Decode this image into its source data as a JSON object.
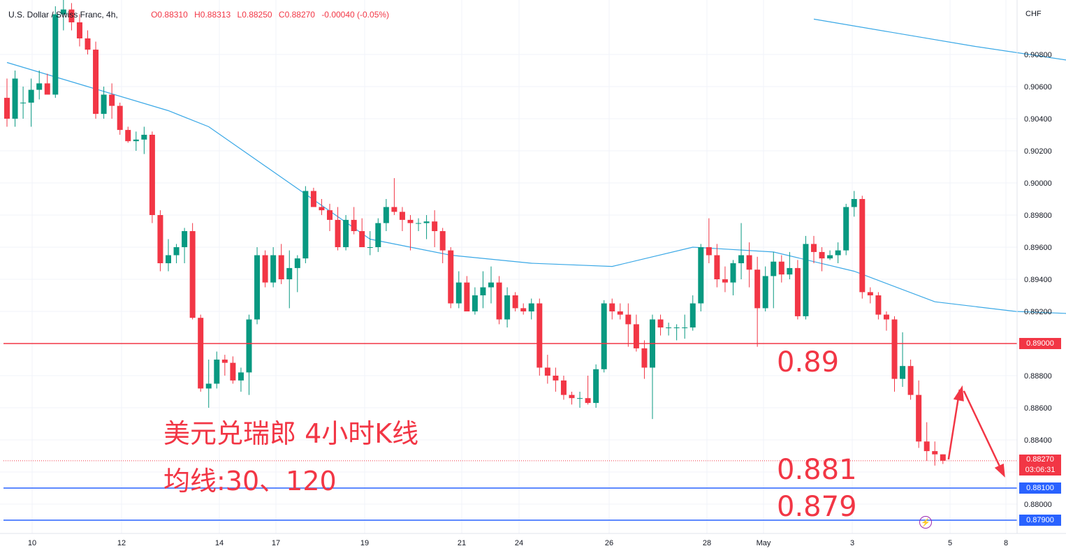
{
  "legend": {
    "symbol": "U.S. Dollar / Swiss Franc, 4h,",
    "open": "O0.88310",
    "high": "H0.88313",
    "low": "L0.88250",
    "close": "C0.88270",
    "change": "-0.00040 (-0.05%)"
  },
  "currency": "CHF",
  "annotations": {
    "title": "美元兑瑞郎 4小时K线",
    "ma_note": "均线:30、120",
    "level_089": "0.89",
    "level_0881": "0.881",
    "level_0879": "0.879"
  },
  "price_tags": {
    "h_0890": "0.89000",
    "last_price": "0.88270",
    "countdown": "03:06:31",
    "h_0881": "0.88100",
    "h_0879": "0.87900"
  },
  "alert_icon": "lightning-icon",
  "colors": {
    "up": "#089981",
    "down": "#f23645",
    "ma": "#3aa8e6",
    "hline_red": "#f23645",
    "hline_blue": "#2962ff",
    "grid": "#f0f3fa",
    "axis_text": "#131722"
  },
  "chart_data": {
    "type": "candlestick",
    "timeframe": "4h",
    "y_ticks": [
      "0.87900",
      "0.88000",
      "0.88200",
      "0.88400",
      "0.88600",
      "0.88800",
      "0.89000",
      "0.89200",
      "0.89400",
      "0.89600",
      "0.89800",
      "0.90000",
      "0.90200",
      "0.90400",
      "0.90600",
      "0.90800"
    ],
    "ylim": [
      0.8785,
      0.9105
    ],
    "x_ticks": [
      "10",
      "12",
      "14",
      "17",
      "19",
      "21",
      "24",
      "26",
      "28",
      "May",
      "3",
      "5",
      "8"
    ],
    "grid": true,
    "horizontal_lines": [
      0.89,
      0.881,
      0.879
    ],
    "last_price": 0.8827,
    "candles": [
      [
        0.9053,
        0.9065,
        0.9035,
        0.904
      ],
      [
        0.904,
        0.907,
        0.9035,
        0.9065
      ],
      [
        0.905,
        0.906,
        0.904,
        0.905
      ],
      [
        0.905,
        0.9065,
        0.9035,
        0.9058
      ],
      [
        0.9058,
        0.907,
        0.9052,
        0.9062
      ],
      [
        0.9062,
        0.9068,
        0.9055,
        0.9055
      ],
      [
        0.9055,
        0.911,
        0.9053,
        0.9105
      ],
      [
        0.9105,
        0.9115,
        0.9095,
        0.9108
      ],
      [
        0.9108,
        0.9112,
        0.9095,
        0.91
      ],
      [
        0.91,
        0.9105,
        0.9085,
        0.909
      ],
      [
        0.909,
        0.9095,
        0.908,
        0.9083
      ],
      [
        0.9083,
        0.9088,
        0.904,
        0.9043
      ],
      [
        0.9043,
        0.906,
        0.904,
        0.9055
      ],
      [
        0.9055,
        0.9062,
        0.904,
        0.9048
      ],
      [
        0.9048,
        0.905,
        0.903,
        0.9033
      ],
      [
        0.9033,
        0.9035,
        0.9025,
        0.9026
      ],
      [
        0.9026,
        0.9032,
        0.902,
        0.9027
      ],
      [
        0.9027,
        0.9035,
        0.9018,
        0.903
      ],
      [
        0.903,
        0.9032,
        0.8975,
        0.898
      ],
      [
        0.898,
        0.8983,
        0.8945,
        0.895
      ],
      [
        0.895,
        0.8965,
        0.8945,
        0.8955
      ],
      [
        0.8955,
        0.8962,
        0.895,
        0.896
      ],
      [
        0.896,
        0.8972,
        0.895,
        0.897
      ],
      [
        0.897,
        0.8975,
        0.8915,
        0.8916
      ],
      [
        0.8916,
        0.8918,
        0.887,
        0.8872
      ],
      [
        0.8872,
        0.889,
        0.886,
        0.8875
      ],
      [
        0.8875,
        0.8895,
        0.8872,
        0.889
      ],
      [
        0.889,
        0.8893,
        0.888,
        0.8888
      ],
      [
        0.8888,
        0.8892,
        0.8875,
        0.8877
      ],
      [
        0.8877,
        0.8885,
        0.887,
        0.8882
      ],
      [
        0.8882,
        0.8918,
        0.8868,
        0.8915
      ],
      [
        0.8915,
        0.896,
        0.8912,
        0.8955
      ],
      [
        0.8955,
        0.8958,
        0.8935,
        0.8938
      ],
      [
        0.8938,
        0.896,
        0.8935,
        0.8955
      ],
      [
        0.8955,
        0.8962,
        0.8937,
        0.894
      ],
      [
        0.894,
        0.8958,
        0.8922,
        0.8947
      ],
      [
        0.8947,
        0.8955,
        0.8932,
        0.8953
      ],
      [
        0.8953,
        0.8998,
        0.895,
        0.8995
      ],
      [
        0.8995,
        0.8997,
        0.8985,
        0.8985
      ],
      [
        0.8985,
        0.899,
        0.898,
        0.8983
      ],
      [
        0.8983,
        0.8987,
        0.897,
        0.8977
      ],
      [
        0.8977,
        0.8985,
        0.8958,
        0.896
      ],
      [
        0.896,
        0.898,
        0.8958,
        0.8977
      ],
      [
        0.8977,
        0.8985,
        0.8968,
        0.897
      ],
      [
        0.897,
        0.8978,
        0.896,
        0.896
      ],
      [
        0.896,
        0.897,
        0.8955,
        0.896
      ],
      [
        0.896,
        0.8978,
        0.8957,
        0.8975
      ],
      [
        0.8975,
        0.899,
        0.897,
        0.8985
      ],
      [
        0.8985,
        0.9003,
        0.898,
        0.8982
      ],
      [
        0.8982,
        0.8985,
        0.897,
        0.8977
      ],
      [
        0.8977,
        0.898,
        0.8958,
        0.8975
      ],
      [
        0.8975,
        0.8978,
        0.897,
        0.8975
      ],
      [
        0.8975,
        0.898,
        0.8965,
        0.8976
      ],
      [
        0.8976,
        0.8983,
        0.896,
        0.897
      ],
      [
        0.897,
        0.8972,
        0.895,
        0.8958
      ],
      [
        0.8958,
        0.896,
        0.8922,
        0.8925
      ],
      [
        0.8925,
        0.8945,
        0.8922,
        0.8938
      ],
      [
        0.8938,
        0.8942,
        0.892,
        0.892
      ],
      [
        0.892,
        0.8935,
        0.8918,
        0.893
      ],
      [
        0.893,
        0.8945,
        0.8922,
        0.8935
      ],
      [
        0.8935,
        0.8948,
        0.8925,
        0.8938
      ],
      [
        0.8938,
        0.8942,
        0.8912,
        0.8915
      ],
      [
        0.8915,
        0.8935,
        0.891,
        0.893
      ],
      [
        0.893,
        0.8932,
        0.892,
        0.8922
      ],
      [
        0.8922,
        0.8925,
        0.8918,
        0.892
      ],
      [
        0.892,
        0.8928,
        0.8915,
        0.8925
      ],
      [
        0.8925,
        0.8928,
        0.888,
        0.8885
      ],
      [
        0.8885,
        0.8893,
        0.8875,
        0.888
      ],
      [
        0.888,
        0.8885,
        0.887,
        0.8877
      ],
      [
        0.8877,
        0.888,
        0.8865,
        0.8868
      ],
      [
        0.8868,
        0.887,
        0.8862,
        0.8866
      ],
      [
        0.8866,
        0.887,
        0.886,
        0.8866
      ],
      [
        0.8866,
        0.888,
        0.8862,
        0.8863
      ],
      [
        0.8863,
        0.8887,
        0.886,
        0.8884
      ],
      [
        0.8884,
        0.8927,
        0.8882,
        0.8925
      ],
      [
        0.8925,
        0.8928,
        0.8915,
        0.892
      ],
      [
        0.892,
        0.8925,
        0.8915,
        0.8918
      ],
      [
        0.8918,
        0.8925,
        0.8898,
        0.8912
      ],
      [
        0.8912,
        0.8918,
        0.8895,
        0.8897
      ],
      [
        0.8897,
        0.8902,
        0.8878,
        0.8885
      ],
      [
        0.8885,
        0.8918,
        0.8853,
        0.8915
      ],
      [
        0.8915,
        0.8918,
        0.8905,
        0.891
      ],
      [
        0.891,
        0.8913,
        0.8905,
        0.891
      ],
      [
        0.891,
        0.8912,
        0.8902,
        0.891
      ],
      [
        0.891,
        0.8918,
        0.8903,
        0.891
      ],
      [
        0.891,
        0.893,
        0.8908,
        0.8925
      ],
      [
        0.8925,
        0.8962,
        0.892,
        0.896
      ],
      [
        0.896,
        0.8978,
        0.895,
        0.8955
      ],
      [
        0.8955,
        0.8962,
        0.8935,
        0.894
      ],
      [
        0.894,
        0.8948,
        0.8932,
        0.8938
      ],
      [
        0.8938,
        0.8952,
        0.893,
        0.895
      ],
      [
        0.895,
        0.8975,
        0.894,
        0.8955
      ],
      [
        0.8955,
        0.8963,
        0.8935,
        0.8946
      ],
      [
        0.8946,
        0.8954,
        0.8898,
        0.8922
      ],
      [
        0.8922,
        0.8948,
        0.892,
        0.8942
      ],
      [
        0.8942,
        0.8957,
        0.8922,
        0.8951
      ],
      [
        0.8951,
        0.8955,
        0.8938,
        0.8943
      ],
      [
        0.8943,
        0.8957,
        0.894,
        0.8947
      ],
      [
        0.8947,
        0.8952,
        0.8915,
        0.8917
      ],
      [
        0.8917,
        0.8967,
        0.8915,
        0.8962
      ],
      [
        0.8962,
        0.8967,
        0.895,
        0.8957
      ],
      [
        0.8957,
        0.896,
        0.8945,
        0.8953
      ],
      [
        0.8953,
        0.8958,
        0.8952,
        0.8955
      ],
      [
        0.8955,
        0.8963,
        0.895,
        0.8958
      ],
      [
        0.8958,
        0.8987,
        0.8955,
        0.8985
      ],
      [
        0.8985,
        0.8995,
        0.8979,
        0.899
      ],
      [
        0.899,
        0.8992,
        0.8928,
        0.8932
      ],
      [
        0.8932,
        0.8935,
        0.8925,
        0.893
      ],
      [
        0.893,
        0.8932,
        0.8915,
        0.8918
      ],
      [
        0.8918,
        0.892,
        0.8908,
        0.8915
      ],
      [
        0.8915,
        0.8917,
        0.887,
        0.8878
      ],
      [
        0.8878,
        0.8907,
        0.8873,
        0.8886
      ],
      [
        0.8886,
        0.889,
        0.8865,
        0.8868
      ],
      [
        0.8868,
        0.8877,
        0.8835,
        0.8839
      ],
      [
        0.8839,
        0.8851,
        0.8827,
        0.8833
      ],
      [
        0.8833,
        0.8839,
        0.8824,
        0.8831
      ],
      [
        0.8831,
        0.8831,
        0.8825,
        0.8827
      ]
    ],
    "ma30": [
      [
        0,
        0.9075
      ],
      [
        10,
        0.906
      ],
      [
        20,
        0.9045
      ],
      [
        25,
        0.9035
      ],
      [
        35,
        0.9
      ],
      [
        45,
        0.8965
      ],
      [
        55,
        0.8955
      ],
      [
        65,
        0.895
      ],
      [
        75,
        0.8948
      ],
      [
        85,
        0.896
      ],
      [
        95,
        0.8957
      ],
      [
        105,
        0.8945
      ],
      [
        115,
        0.8926
      ],
      [
        125,
        0.892
      ],
      [
        135,
        0.8918
      ],
      [
        145,
        0.8914
      ],
      [
        155,
        0.8911
      ],
      [
        165,
        0.8912
      ],
      [
        175,
        0.8915
      ],
      [
        185,
        0.8925
      ],
      [
        190,
        0.8937
      ],
      [
        200,
        0.8937
      ],
      [
        210,
        0.8935
      ],
      [
        222,
        0.8924
      ]
    ],
    "ma120": [
      [
        100,
        0.9102
      ],
      [
        120,
        0.9085
      ],
      [
        140,
        0.907
      ],
      [
        160,
        0.9055
      ],
      [
        180,
        0.9035
      ],
      [
        200,
        0.9015
      ],
      [
        220,
        0.8997
      ],
      [
        240,
        0.8983
      ],
      [
        260,
        0.897
      ],
      [
        280,
        0.8955
      ]
    ]
  }
}
